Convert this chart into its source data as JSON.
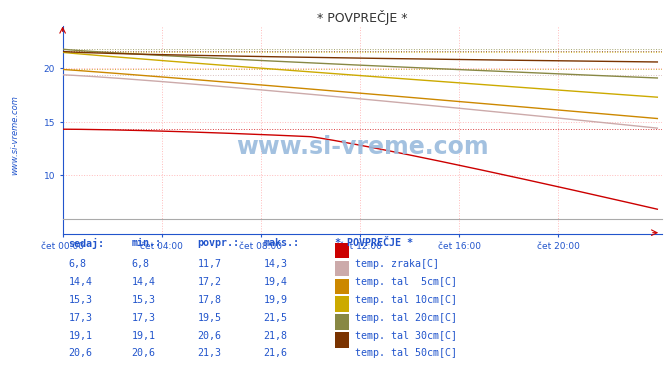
{
  "title": "* POVPREČJE *",
  "background_color": "#ffffff",
  "plot_bg_color": "#ffffff",
  "grid_minor_color": "#ffdddd",
  "grid_major_color": "#ffaaaa",
  "x_label_color": "#2255cc",
  "y_label_color": "#2255cc",
  "x_ticks": [
    0,
    4,
    8,
    12,
    16,
    20
  ],
  "x_tick_labels": [
    "čet 00:00",
    "čet 04:00",
    "čet 08:00",
    "čet 12:00",
    "čet 16:00",
    "čet 20:00"
  ],
  "y_ticks": [
    10,
    15,
    20
  ],
  "ylim": [
    4.5,
    24.0
  ],
  "xlim": [
    0,
    24.2
  ],
  "watermark": "www.si-vreme.com",
  "series": [
    {
      "color": "#cc0000",
      "start": 14.3,
      "end": 6.8,
      "plateau_until": 10.0
    },
    {
      "color": "#ccaaaa",
      "start": 19.4,
      "end": 14.4,
      "plateau_until": 0
    },
    {
      "color": "#cc8800",
      "start": 19.9,
      "end": 15.3,
      "plateau_until": 0
    },
    {
      "color": "#ccaa00",
      "start": 21.5,
      "end": 17.3,
      "plateau_until": 0
    },
    {
      "color": "#888844",
      "start": 21.8,
      "end": 19.1,
      "plateau_until": 0
    },
    {
      "color": "#7a3300",
      "start": 21.6,
      "end": 20.6,
      "plateau_until": 0
    }
  ],
  "dotted_maxvals": [
    14.3,
    19.4,
    19.9,
    21.5,
    21.8,
    21.6
  ],
  "dotted_colors": [
    "#cc0000",
    "#ccaaaa",
    "#cc8800",
    "#ccaa00",
    "#888844",
    "#7a3300"
  ],
  "table_headers": [
    "sedaj:",
    "min.:",
    "povpr.:",
    "maks.:"
  ],
  "table_data": [
    [
      6.8,
      6.8,
      11.7,
      14.3
    ],
    [
      14.4,
      14.4,
      17.2,
      19.4
    ],
    [
      15.3,
      15.3,
      17.8,
      19.9
    ],
    [
      17.3,
      17.3,
      19.5,
      21.5
    ],
    [
      19.1,
      19.1,
      20.6,
      21.8
    ],
    [
      20.6,
      20.6,
      21.3,
      21.6
    ]
  ],
  "series_colors_table": [
    "#cc0000",
    "#ccaaaa",
    "#cc8800",
    "#ccaa00",
    "#888844",
    "#7a3300"
  ],
  "series_labels_table": [
    "temp. zraka[C]",
    "temp. tal  5cm[C]",
    "temp. tal 10cm[C]",
    "temp. tal 20cm[C]",
    "temp. tal 30cm[C]",
    "temp. tal 50cm[C]"
  ],
  "table_label": "* POVPREČJE *",
  "left_text": "www.si-vreme.com"
}
